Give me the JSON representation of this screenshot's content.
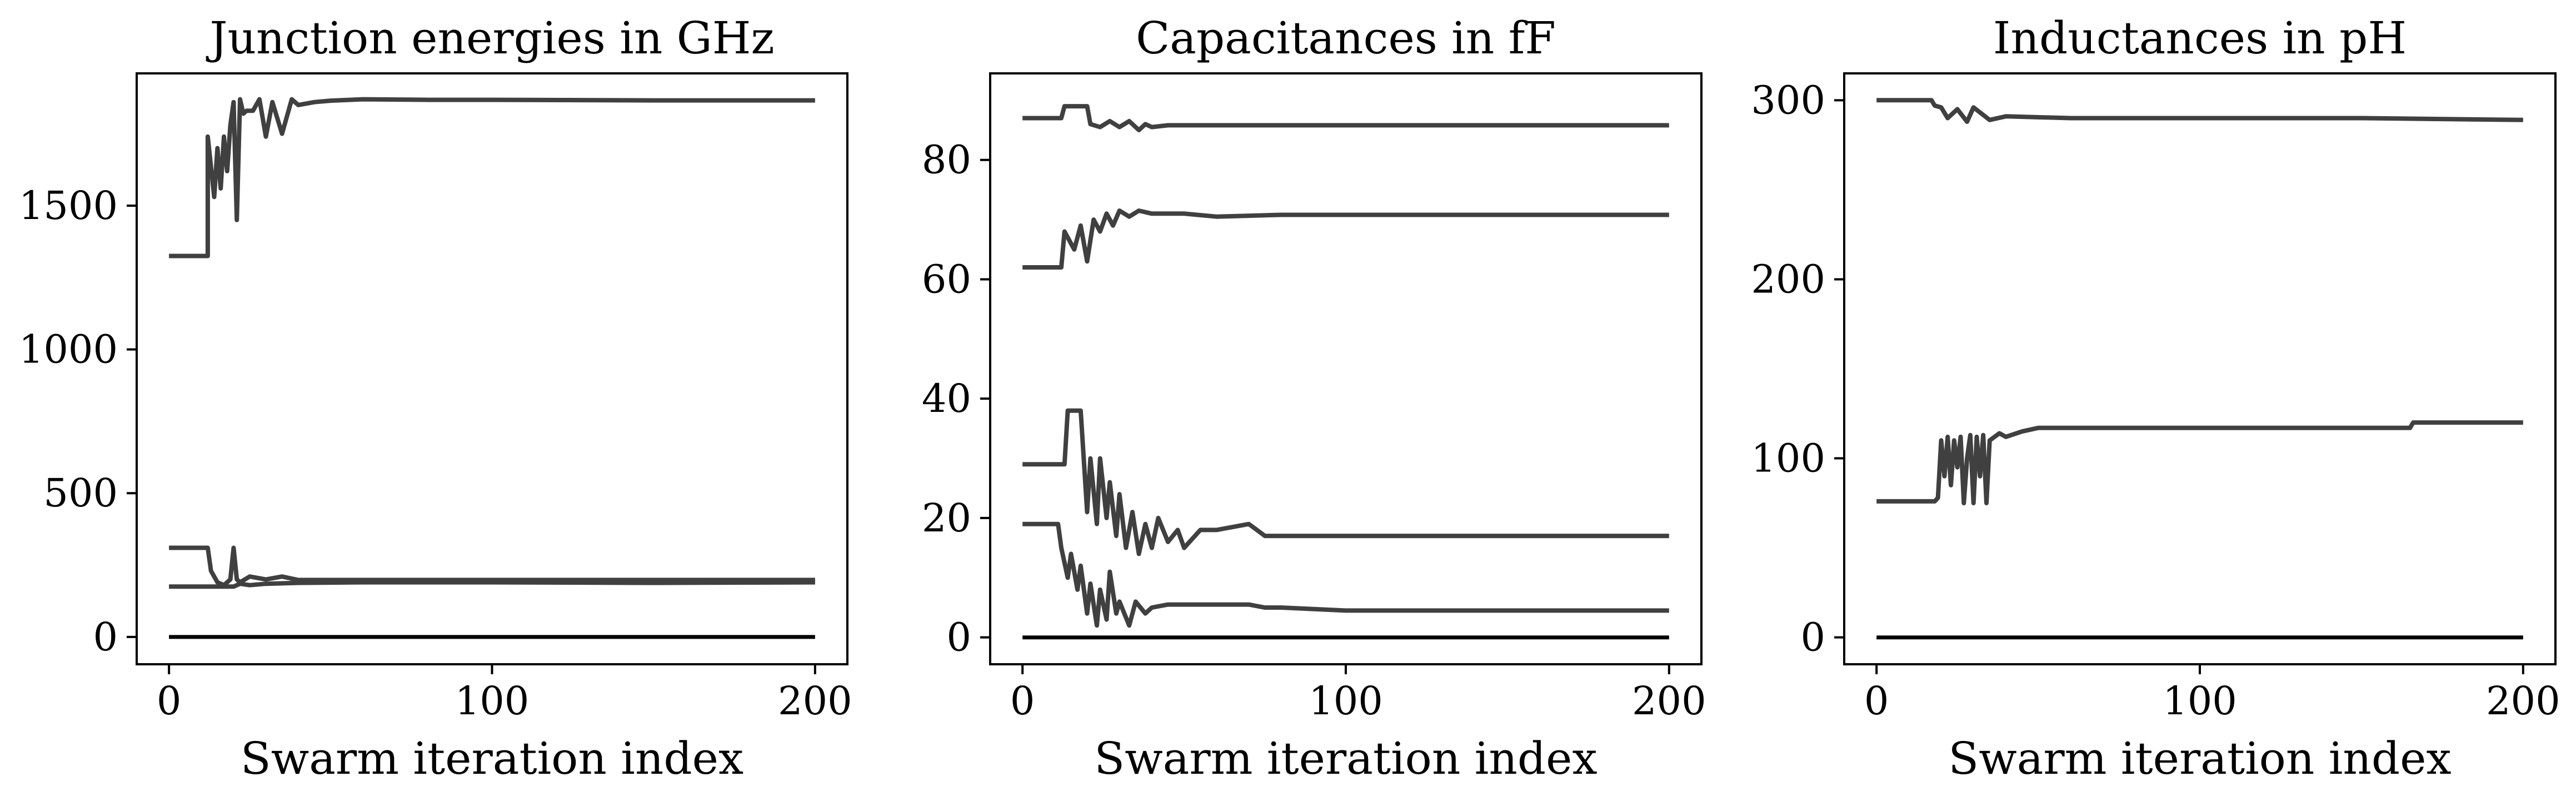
{
  "figure": {
    "background": "#ffffff",
    "line_color": "#404040",
    "zero_line_color": "#000000"
  },
  "chart_data": [
    {
      "type": "line",
      "title": "Junction energies in GHz",
      "xlabel": "Swarm iteration index",
      "ylabel": "",
      "xlim": [
        -10,
        210
      ],
      "ylim": [
        -95,
        1960
      ],
      "xticks": [
        0,
        100,
        200
      ],
      "yticks": [
        0,
        500,
        1000,
        1500
      ],
      "grid": false,
      "series": [
        {
          "x": [
            0,
            12,
            12,
            14,
            15,
            16,
            17,
            18,
            19,
            20,
            21,
            22,
            23,
            24,
            26,
            28,
            30,
            32,
            35,
            38,
            40,
            45,
            50,
            60,
            80,
            100,
            150,
            200
          ],
          "values": [
            1325,
            1325,
            1740,
            1530,
            1700,
            1560,
            1740,
            1620,
            1780,
            1860,
            1450,
            1870,
            1820,
            1830,
            1830,
            1870,
            1740,
            1860,
            1750,
            1870,
            1850,
            1860,
            1865,
            1870,
            1868,
            1868,
            1866,
            1866
          ]
        },
        {
          "x": [
            0,
            12,
            13,
            15,
            17,
            19,
            20,
            21,
            22,
            25,
            30,
            35,
            40,
            60,
            100,
            200
          ],
          "values": [
            310,
            310,
            230,
            190,
            180,
            200,
            310,
            200,
            190,
            210,
            200,
            210,
            198,
            198,
            198,
            198
          ]
        },
        {
          "x": [
            0,
            15,
            20,
            22,
            25,
            30,
            40,
            60,
            100,
            150,
            200
          ],
          "values": [
            175,
            175,
            175,
            185,
            180,
            185,
            188,
            190,
            190,
            188,
            190
          ]
        },
        {
          "x": [
            0,
            200
          ],
          "values": [
            0,
            0
          ],
          "zero_line": true
        }
      ]
    },
    {
      "type": "line",
      "title": "Capacitances in fF",
      "xlabel": "Swarm iteration index",
      "ylabel": "",
      "xlim": [
        -10,
        210
      ],
      "ylim": [
        -4.5,
        94.5
      ],
      "xticks": [
        0,
        100,
        200
      ],
      "yticks": [
        0,
        20,
        40,
        60,
        80
      ],
      "grid": false,
      "series": [
        {
          "x": [
            0,
            12,
            13,
            20,
            21,
            24,
            27,
            30,
            33,
            36,
            38,
            40,
            45,
            60,
            100,
            200
          ],
          "values": [
            87,
            87,
            89,
            89,
            86,
            85.5,
            86.5,
            85.5,
            86.5,
            85,
            86,
            85.5,
            85.8,
            85.8,
            85.8,
            85.8
          ]
        },
        {
          "x": [
            0,
            12,
            13,
            16,
            18,
            20,
            22,
            24,
            26,
            28,
            30,
            33,
            36,
            40,
            50,
            60,
            80,
            100,
            200
          ],
          "values": [
            62,
            62,
            68,
            65,
            69,
            63,
            70,
            68,
            71,
            69,
            71.5,
            70.5,
            71.5,
            71,
            71,
            70.5,
            70.8,
            70.8,
            70.8
          ]
        },
        {
          "x": [
            0,
            13,
            14,
            18,
            20,
            21,
            23,
            24,
            26,
            27,
            29,
            30,
            32,
            34,
            36,
            38,
            40,
            42,
            45,
            48,
            50,
            55,
            60,
            70,
            75,
            80,
            90,
            100,
            200
          ],
          "values": [
            29,
            29,
            38,
            38,
            21,
            30,
            19,
            30,
            20,
            26,
            17,
            24,
            15,
            21,
            14,
            19,
            15,
            20,
            16,
            18,
            15,
            18,
            18,
            19,
            17,
            17,
            17,
            17,
            17
          ]
        },
        {
          "x": [
            0,
            11,
            12,
            14,
            15,
            17,
            18,
            20,
            21,
            23,
            24,
            26,
            27,
            29,
            30,
            33,
            35,
            38,
            40,
            45,
            50,
            60,
            70,
            75,
            80,
            100,
            200
          ],
          "values": [
            19,
            19,
            15,
            10,
            14,
            8,
            12,
            4,
            9,
            2,
            8,
            3,
            11,
            4,
            6,
            2,
            6,
            4,
            5,
            5.5,
            5.5,
            5.5,
            5.5,
            5,
            5,
            4.5,
            4.5
          ]
        },
        {
          "x": [
            0,
            200
          ],
          "values": [
            0,
            0
          ],
          "zero_line": true
        }
      ]
    },
    {
      "type": "line",
      "title": "Inductances in pH",
      "xlabel": "Swarm iteration index",
      "ylabel": "",
      "xlim": [
        -10,
        210
      ],
      "ylim": [
        -15,
        315
      ],
      "xticks": [
        0,
        100,
        200
      ],
      "yticks": [
        0,
        100,
        200,
        300
      ],
      "grid": false,
      "series": [
        {
          "x": [
            0,
            17,
            18,
            20,
            22,
            25,
            28,
            30,
            35,
            40,
            60,
            100,
            150,
            200
          ],
          "values": [
            300,
            300,
            297,
            296,
            290,
            295,
            288,
            296,
            289,
            291,
            290,
            290,
            290,
            289
          ]
        },
        {
          "x": [
            0,
            18,
            19,
            20,
            21,
            22,
            23,
            24,
            25,
            26,
            27,
            28,
            29,
            30,
            31,
            32,
            33,
            34,
            35,
            38,
            40,
            45,
            50,
            60,
            70,
            100,
            165,
            166,
            200
          ],
          "values": [
            76,
            76,
            78,
            110,
            90,
            112,
            85,
            110,
            95,
            112,
            75,
            100,
            113,
            75,
            112,
            90,
            113,
            75,
            110,
            114,
            112,
            115,
            117,
            117,
            117,
            117,
            117,
            120,
            120
          ]
        },
        {
          "x": [
            0,
            200
          ],
          "values": [
            0,
            0
          ],
          "zero_line": true
        }
      ]
    }
  ]
}
